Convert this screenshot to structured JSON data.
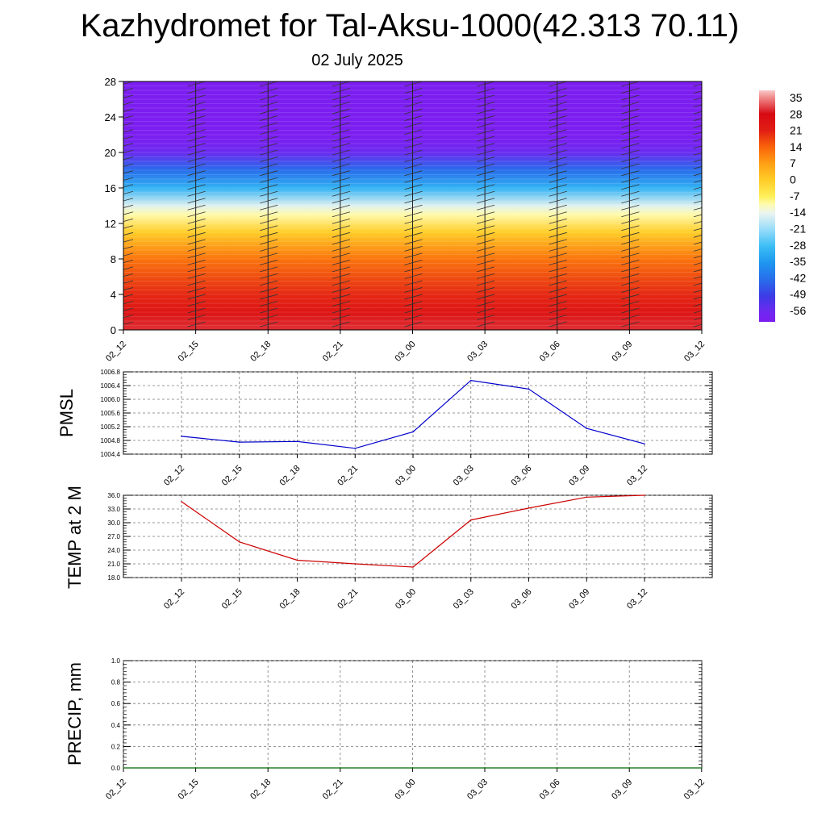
{
  "header": {
    "title": "Kazhydromet for Tal-Aksu-1000(42.313 70.11)",
    "subtitle": "02 July 2025"
  },
  "chart_data": [
    {
      "type": "heatmap",
      "title": "",
      "xlabel": "",
      "ylabel": "",
      "x_ticks": [
        "02_12",
        "02_15",
        "02_18",
        "02_21",
        "03_00",
        "03_03",
        "03_06",
        "03_09",
        "03_12"
      ],
      "y_ticks": [
        0,
        4,
        8,
        12,
        16,
        20,
        24,
        28
      ],
      "ylim": [
        0,
        28
      ],
      "colorbar": {
        "labels": [
          35,
          28,
          21,
          14,
          7,
          0,
          -7,
          -14,
          -21,
          -28,
          -35,
          -42,
          -49,
          -56
        ],
        "range": [
          -60,
          38
        ]
      },
      "temperature_profile": [
        {
          "level": 0,
          "value": 30
        },
        {
          "level": 2,
          "value": 24
        },
        {
          "level": 4,
          "value": 20
        },
        {
          "level": 8,
          "value": 12
        },
        {
          "level": 11,
          "value": 0
        },
        {
          "level": 13,
          "value": -10
        },
        {
          "level": 14,
          "value": -15
        },
        {
          "level": 16,
          "value": -30
        },
        {
          "level": 18,
          "value": -42
        },
        {
          "level": 20,
          "value": -55
        },
        {
          "level": 21,
          "value": -58
        },
        {
          "level": 22,
          "value": -60
        },
        {
          "level": 28,
          "value": -60
        }
      ],
      "wind_barbs": true,
      "grid": false
    },
    {
      "type": "line",
      "title": "",
      "ylabel": "PMSL",
      "x": [
        "02_12",
        "02_15",
        "02_18",
        "02_21",
        "03_00",
        "03_03",
        "03_06",
        "03_09",
        "03_12"
      ],
      "series": [
        {
          "name": "",
          "color": "#0000cc",
          "values": [
            1004.92,
            1004.75,
            1004.77,
            1004.57,
            1005.05,
            1006.55,
            1006.3,
            1005.15,
            1004.7
          ]
        }
      ],
      "ylim": [
        1004.4,
        1006.8
      ],
      "y_ticks": [
        "1004.4",
        "1004.8",
        "1005.2",
        "1005.6",
        "1006.0",
        "1006.4",
        "1006.8"
      ],
      "grid": true
    },
    {
      "type": "line",
      "title": "",
      "ylabel": "TEMP at 2 M",
      "x": [
        "02_12",
        "02_15",
        "02_18",
        "02_21",
        "03_00",
        "03_03",
        "03_06",
        "03_09",
        "03_12"
      ],
      "series": [
        {
          "name": "",
          "color": "#cc0000",
          "values": [
            34.6,
            25.8,
            21.8,
            21.0,
            20.3,
            30.6,
            33.2,
            35.6,
            36.0
          ]
        }
      ],
      "ylim": [
        18,
        36
      ],
      "y_ticks": [
        "18.0",
        "21.0",
        "24.0",
        "27.0",
        "30.0",
        "33.0",
        "36.0"
      ],
      "grid": true
    },
    {
      "type": "line",
      "title": "",
      "ylabel": "PRECIP, mm",
      "x": [
        "02_12",
        "02_15",
        "02_18",
        "02_21",
        "03_00",
        "03_03",
        "03_06",
        "03_09",
        "03_12"
      ],
      "series": [
        {
          "name": "",
          "color": "#006600",
          "values": [
            0,
            0,
            0,
            0,
            0,
            0,
            0,
            0,
            0
          ]
        }
      ],
      "ylim": [
        0,
        1
      ],
      "y_ticks": [
        "0.0",
        "0.2",
        "0.4",
        "0.6",
        "0.8",
        "1.0"
      ],
      "grid": true
    }
  ]
}
